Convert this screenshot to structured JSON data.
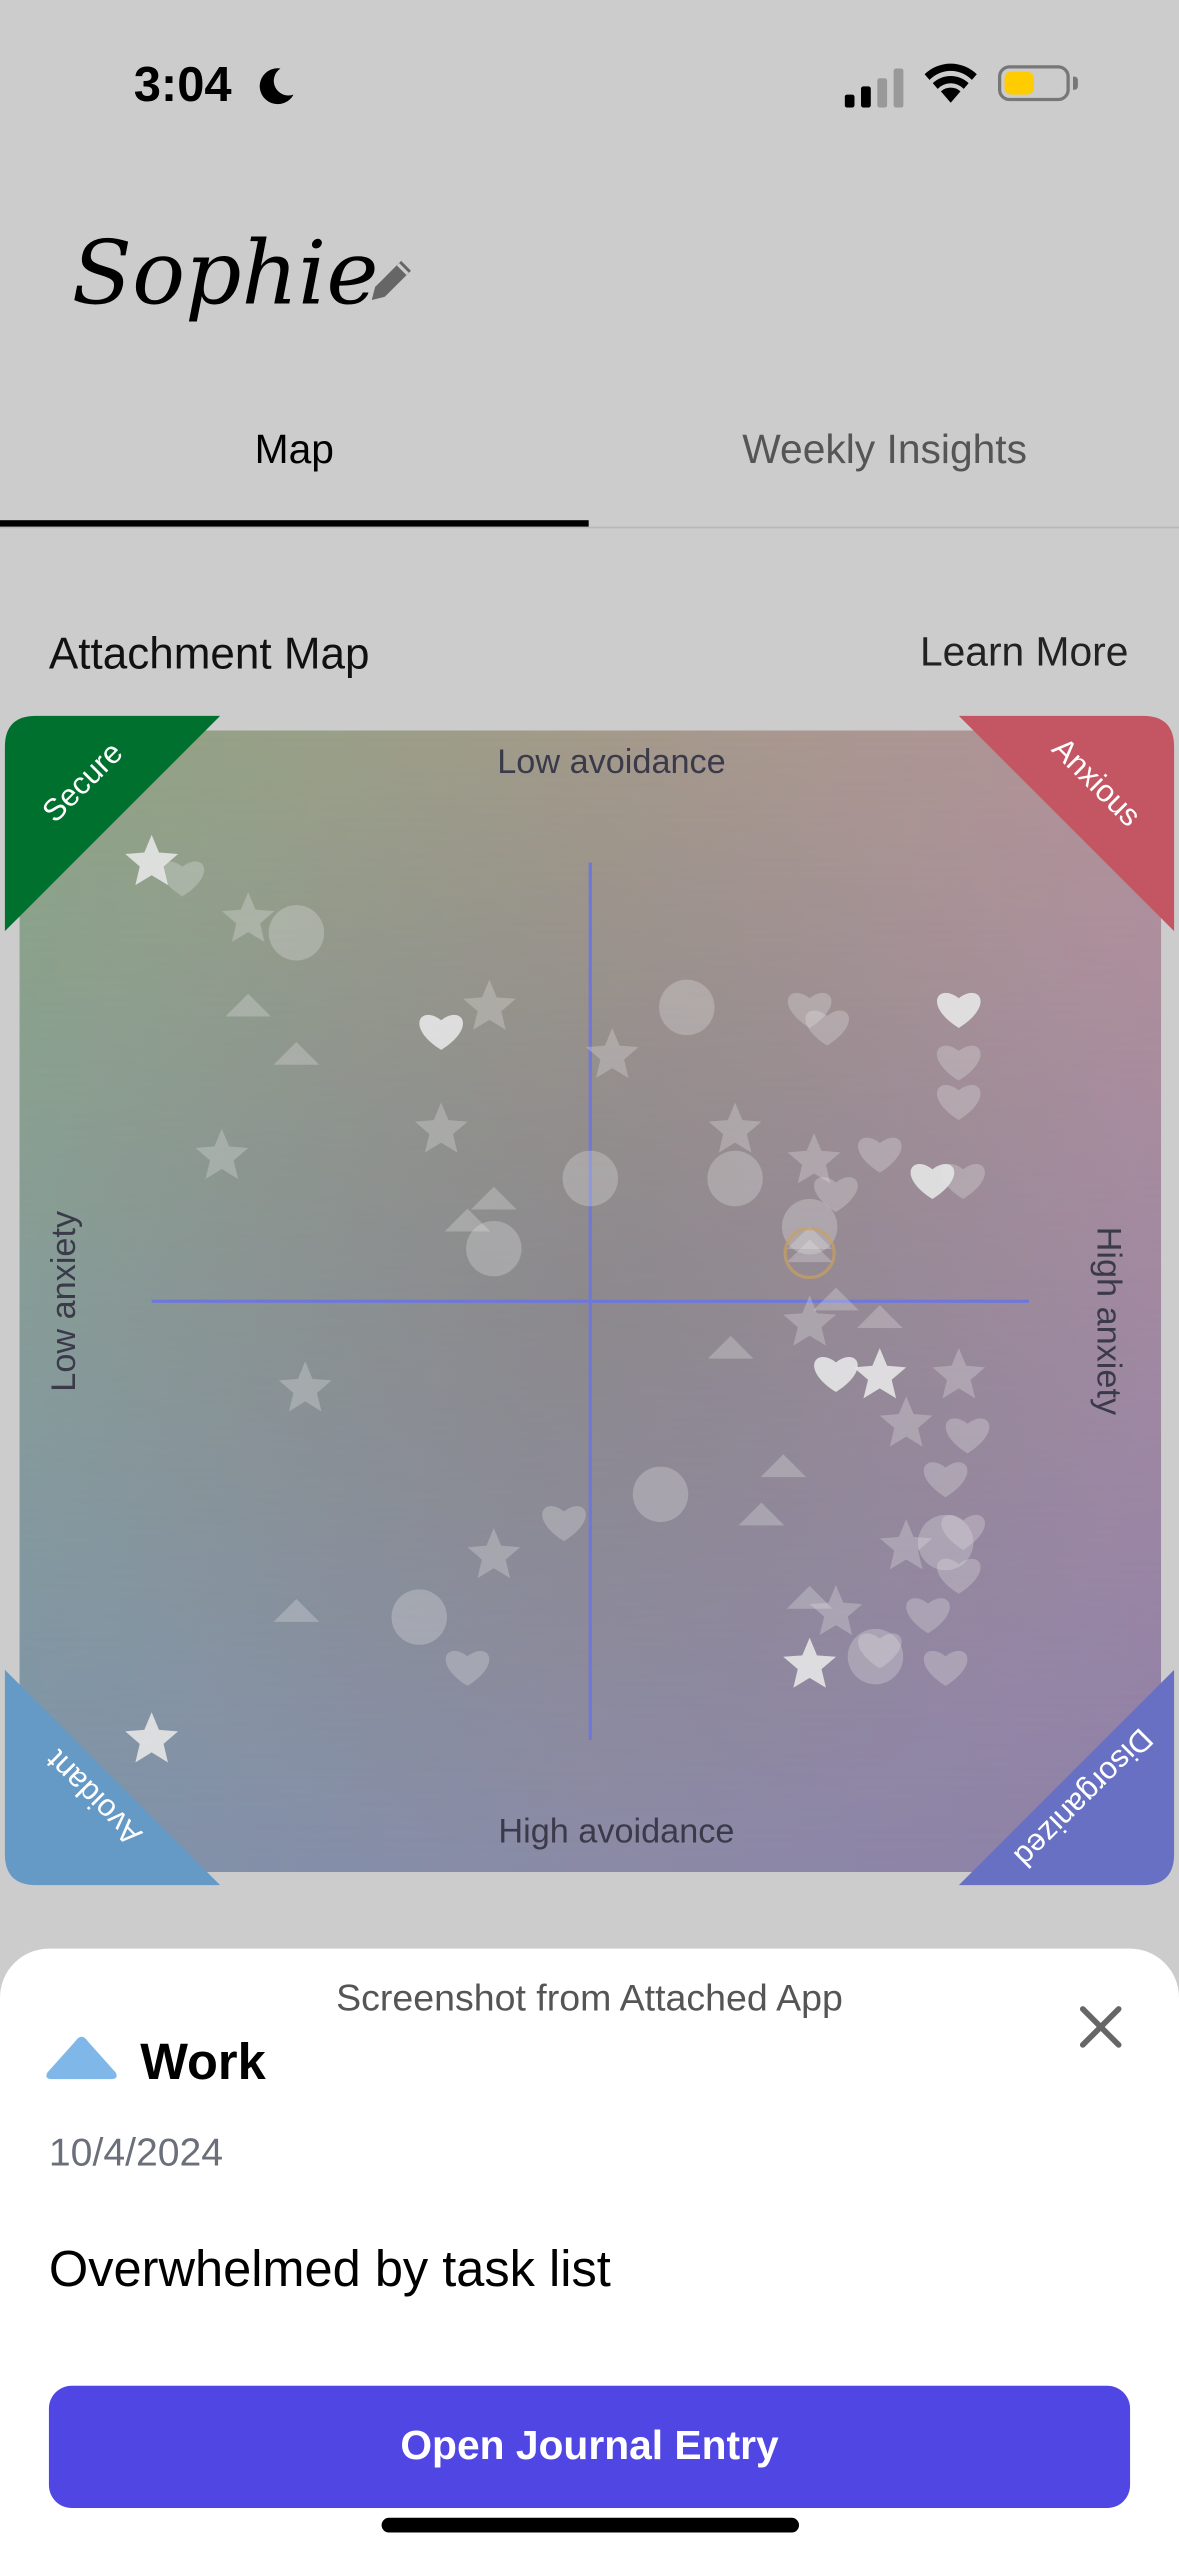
{
  "status_bar": {
    "time": "3:04",
    "focus_icon": "moon-icon",
    "signal_icon": "cellular-signal-icon",
    "wifi_icon": "wifi-icon",
    "battery_icon": "battery-low-icon",
    "battery_color": "#ffcc00"
  },
  "header": {
    "name": "Sophie",
    "edit_icon": "pencil-icon"
  },
  "tabs": [
    {
      "label": "Map",
      "active": true
    },
    {
      "label": "Weekly Insights",
      "active": false
    }
  ],
  "section": {
    "title": "Attachment Map",
    "learn_more": "Learn More"
  },
  "map": {
    "axis_labels": {
      "top": "Low avoidance",
      "bottom": "High avoidance",
      "left": "Low anxiety",
      "right": "High anxiety"
    },
    "corners": {
      "top_left": {
        "label": "Secure",
        "color": "#00702f"
      },
      "top_right": {
        "label": "Anxious",
        "color": "#c45663"
      },
      "bottom_left": {
        "label": "Avoidant",
        "color": "#6599c6"
      },
      "bottom_right": {
        "label": "Disorganized",
        "color": "#6870c4"
      }
    },
    "axis_color": "#6f78d8",
    "selected_color": "#c9a060",
    "x_range": [
      -100,
      100
    ],
    "y_range": [
      -100,
      100
    ],
    "points": [
      {
        "shape": "star",
        "anxiety": -100,
        "avoidance": -100,
        "bright": true
      },
      {
        "shape": "star",
        "anxiety": -78,
        "avoidance": -87
      },
      {
        "shape": "star",
        "anxiety": -23,
        "avoidance": -67
      },
      {
        "shape": "star",
        "anxiety": 5,
        "avoidance": -56
      },
      {
        "shape": "star",
        "anxiety": -34,
        "avoidance": -39
      },
      {
        "shape": "star",
        "anxiety": -84,
        "avoidance": -33
      },
      {
        "shape": "star",
        "anxiety": 33,
        "avoidance": -39
      },
      {
        "shape": "star",
        "anxiety": 51,
        "avoidance": -32
      },
      {
        "shape": "star",
        "anxiety": 50,
        "avoidance": 5
      },
      {
        "shape": "star",
        "anxiety": 66,
        "avoidance": 17,
        "bright": true
      },
      {
        "shape": "star",
        "anxiety": 84,
        "avoidance": 17
      },
      {
        "shape": "star",
        "anxiety": 72,
        "avoidance": 28
      },
      {
        "shape": "star",
        "anxiety": -65,
        "avoidance": 20
      },
      {
        "shape": "star",
        "anxiety": -22,
        "avoidance": 58
      },
      {
        "shape": "star",
        "anxiety": 72,
        "avoidance": 56
      },
      {
        "shape": "star",
        "anxiety": 56,
        "avoidance": 71
      },
      {
        "shape": "star",
        "anxiety": 50,
        "avoidance": 83,
        "bright": true
      },
      {
        "shape": "star",
        "anxiety": -100,
        "avoidance": 100,
        "bright": true
      },
      {
        "shape": "heart",
        "anxiety": -93,
        "avoidance": -97
      },
      {
        "shape": "heart",
        "anxiety": -34,
        "avoidance": -62,
        "bright": true
      },
      {
        "shape": "heart",
        "anxiety": 50,
        "avoidance": -67
      },
      {
        "shape": "heart",
        "anxiety": 54,
        "avoidance": -63
      },
      {
        "shape": "heart",
        "anxiety": 84,
        "avoidance": -67,
        "bright": true
      },
      {
        "shape": "heart",
        "anxiety": 84,
        "avoidance": -55
      },
      {
        "shape": "heart",
        "anxiety": 84,
        "avoidance": -46
      },
      {
        "shape": "heart",
        "anxiety": 78,
        "avoidance": -28,
        "bright": true
      },
      {
        "shape": "heart",
        "anxiety": 85,
        "avoidance": -28
      },
      {
        "shape": "heart",
        "anxiety": 66,
        "avoidance": -34
      },
      {
        "shape": "heart",
        "anxiety": 56,
        "avoidance": -25
      },
      {
        "shape": "heart",
        "anxiety": 56,
        "avoidance": 16,
        "bright": true
      },
      {
        "shape": "heart",
        "anxiety": 86,
        "avoidance": 30
      },
      {
        "shape": "heart",
        "anxiety": 81,
        "avoidance": 40
      },
      {
        "shape": "heart",
        "anxiety": 85,
        "avoidance": 52
      },
      {
        "shape": "heart",
        "anxiety": 84,
        "avoidance": 62
      },
      {
        "shape": "heart",
        "anxiety": -6,
        "avoidance": 50
      },
      {
        "shape": "heart",
        "anxiety": -28,
        "avoidance": 83
      },
      {
        "shape": "heart",
        "anxiety": 66,
        "avoidance": 79
      },
      {
        "shape": "heart",
        "anxiety": 81,
        "avoidance": 83
      },
      {
        "shape": "heart",
        "anxiety": 77,
        "avoidance": 71
      },
      {
        "shape": "circle",
        "anxiety": -67,
        "avoidance": -84
      },
      {
        "shape": "circle",
        "anxiety": 22,
        "avoidance": -67
      },
      {
        "shape": "circle",
        "anxiety": 0,
        "avoidance": -28
      },
      {
        "shape": "circle",
        "anxiety": 33,
        "avoidance": -28
      },
      {
        "shape": "circle",
        "anxiety": -22,
        "avoidance": -12
      },
      {
        "shape": "circle",
        "anxiety": 50,
        "avoidance": -17
      },
      {
        "shape": "circle",
        "anxiety": 16,
        "avoidance": 44
      },
      {
        "shape": "circle",
        "anxiety": -39,
        "avoidance": 72
      },
      {
        "shape": "circle",
        "anxiety": 65,
        "avoidance": 81
      },
      {
        "shape": "circle",
        "anxiety": 81,
        "avoidance": 55
      },
      {
        "shape": "triangle",
        "anxiety": -78,
        "avoidance": -67
      },
      {
        "shape": "triangle",
        "anxiety": -67,
        "avoidance": -56
      },
      {
        "shape": "triangle",
        "anxiety": -22,
        "avoidance": -23
      },
      {
        "shape": "triangle",
        "anxiety": -28,
        "avoidance": -18
      },
      {
        "shape": "triangle",
        "anxiety": 50,
        "avoidance": -14
      },
      {
        "shape": "triangle",
        "anxiety": 56,
        "avoidance": 0
      },
      {
        "shape": "triangle",
        "anxiety": 66,
        "avoidance": 4
      },
      {
        "shape": "triangle",
        "anxiety": 32,
        "avoidance": 11
      },
      {
        "shape": "triangle",
        "anxiety": 44,
        "avoidance": 38
      },
      {
        "shape": "triangle",
        "anxiety": 39,
        "avoidance": 49
      },
      {
        "shape": "triangle",
        "anxiety": 50,
        "avoidance": 68
      },
      {
        "shape": "triangle",
        "anxiety": -67,
        "avoidance": 71
      }
    ],
    "selected": {
      "shape": "triangle",
      "anxiety": 50,
      "avoidance": -11
    }
  },
  "sheet": {
    "title": "Screenshot from Attached App",
    "close_icon": "close-icon",
    "category_icon": "triangle-icon",
    "category_color": "#7fb8e8",
    "category": "Work",
    "date": "10/4/2024",
    "entry_title": "Overwhelmed by task list",
    "button_label": "Open Journal Entry",
    "button_color": "#5046e4"
  }
}
